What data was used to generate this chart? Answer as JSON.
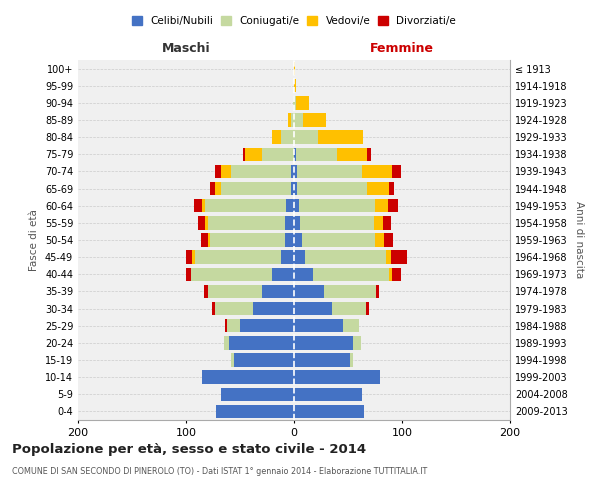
{
  "age_groups": [
    "0-4",
    "5-9",
    "10-14",
    "15-19",
    "20-24",
    "25-29",
    "30-34",
    "35-39",
    "40-44",
    "45-49",
    "50-54",
    "55-59",
    "60-64",
    "65-69",
    "70-74",
    "75-79",
    "80-84",
    "85-89",
    "90-94",
    "95-99",
    "100+"
  ],
  "birth_years": [
    "2009-2013",
    "2004-2008",
    "1999-2003",
    "1994-1998",
    "1989-1993",
    "1984-1988",
    "1979-1983",
    "1974-1978",
    "1969-1973",
    "1964-1968",
    "1959-1963",
    "1954-1958",
    "1949-1953",
    "1944-1948",
    "1939-1943",
    "1934-1938",
    "1929-1933",
    "1924-1928",
    "1919-1923",
    "1914-1918",
    "≤ 1913"
  ],
  "male": {
    "celibe": [
      72,
      68,
      85,
      56,
      60,
      50,
      38,
      30,
      20,
      12,
      8,
      8,
      7,
      3,
      3,
      0,
      0,
      0,
      0,
      0,
      0
    ],
    "coniugato": [
      0,
      0,
      0,
      2,
      5,
      12,
      35,
      50,
      75,
      80,
      70,
      72,
      75,
      65,
      55,
      30,
      12,
      3,
      1,
      0,
      0
    ],
    "vedovo": [
      0,
      0,
      0,
      0,
      0,
      0,
      0,
      0,
      0,
      2,
      2,
      2,
      3,
      5,
      10,
      15,
      8,
      3,
      0,
      0,
      0
    ],
    "divorziato": [
      0,
      0,
      0,
      0,
      0,
      2,
      3,
      3,
      5,
      6,
      6,
      7,
      8,
      5,
      5,
      2,
      0,
      0,
      0,
      0,
      0
    ]
  },
  "female": {
    "nubile": [
      65,
      63,
      80,
      52,
      55,
      45,
      35,
      28,
      18,
      10,
      7,
      6,
      5,
      3,
      3,
      2,
      0,
      0,
      0,
      0,
      0
    ],
    "coniugata": [
      0,
      0,
      0,
      3,
      7,
      15,
      32,
      48,
      70,
      75,
      68,
      68,
      70,
      65,
      60,
      38,
      22,
      8,
      2,
      0,
      0
    ],
    "vedova": [
      0,
      0,
      0,
      0,
      0,
      0,
      0,
      0,
      3,
      5,
      8,
      8,
      12,
      20,
      28,
      28,
      42,
      22,
      12,
      2,
      1
    ],
    "divorziata": [
      0,
      0,
      0,
      0,
      0,
      0,
      2,
      3,
      8,
      15,
      9,
      8,
      9,
      5,
      8,
      3,
      0,
      0,
      0,
      0,
      0
    ]
  },
  "colors": {
    "celibe": "#4472c4",
    "coniugato": "#c5d9a0",
    "vedovo": "#ffc000",
    "divorziato": "#cc0000"
  },
  "title": "Popolazione per età, sesso e stato civile - 2014",
  "subtitle": "COMUNE DI SAN SECONDO DI PINEROLO (TO) - Dati ISTAT 1° gennaio 2014 - Elaborazione TUTTITALIA.IT",
  "xlabel_left": "Maschi",
  "xlabel_right": "Femmine",
  "ylabel_left": "Fasce di età",
  "ylabel_right": "Anni di nascita",
  "xlim": 200,
  "legend_labels": [
    "Celibi/Nubili",
    "Coniugati/e",
    "Vedovi/e",
    "Divorziati/e"
  ],
  "bg_color": "#f0f0f0",
  "fig_bg": "#ffffff"
}
